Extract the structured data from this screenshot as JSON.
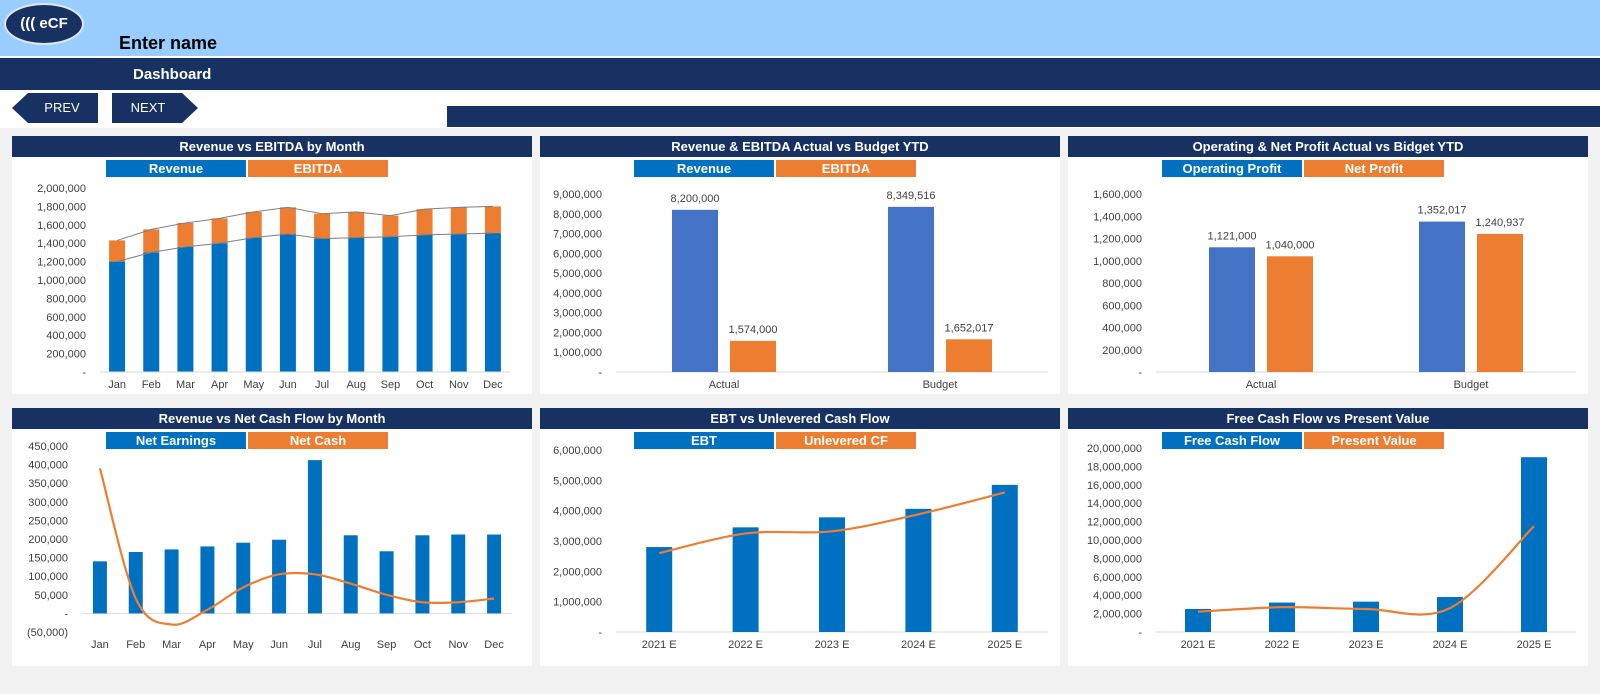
{
  "header": {
    "logo_text": "((( eCF",
    "company_name": "Enter name",
    "page_title": "Dashboard",
    "prev_label": "PREV",
    "next_label": "NEXT"
  },
  "colors": {
    "navy": "#173262",
    "blue": "#0070c0",
    "orange": "#ed7d31",
    "budget_blue": "#4472c4",
    "sky": "#99ccff"
  },
  "panels": [
    {
      "title": "Revenue vs EBITDA by Month",
      "legend": [
        "Revenue",
        "EBITDA"
      ]
    },
    {
      "title": "Revenue & EBITDA Actual vs Budget YTD",
      "legend": [
        "Revenue",
        "EBITDA"
      ]
    },
    {
      "title": "Operating & Net Profit Actual vs Bidget YTD",
      "legend": [
        "Operating Profit",
        "Net Profit"
      ]
    },
    {
      "title": "Revenue vs Net Cash Flow by Month",
      "legend": [
        "Net Earnings",
        "Net Cash"
      ]
    },
    {
      "title": "EBT vs Unlevered Cash Flow",
      "legend": [
        "EBT",
        "Unlevered CF"
      ]
    },
    {
      "title": "Free Cash Flow vs Present Value",
      "legend": [
        "Free Cash Flow",
        "Present Value"
      ]
    }
  ],
  "chart_data": [
    {
      "type": "bar",
      "stacked": true,
      "title": "Revenue vs EBITDA by Month",
      "categories": [
        "Jan",
        "Feb",
        "Mar",
        "Apr",
        "May",
        "Jun",
        "Jul",
        "Aug",
        "Sep",
        "Oct",
        "Nov",
        "Dec"
      ],
      "series": [
        {
          "name": "Revenue",
          "values": [
            1200000,
            1300000,
            1360000,
            1400000,
            1460000,
            1500000,
            1450000,
            1460000,
            1470000,
            1490000,
            1500000,
            1510000
          ]
        },
        {
          "name": "EBITDA",
          "values": [
            230000,
            250000,
            260000,
            270000,
            280000,
            290000,
            270000,
            280000,
            230000,
            280000,
            290000,
            290000
          ]
        }
      ],
      "ylim": [
        0,
        2000000
      ],
      "yticks": [
        "-",
        "200,000",
        "400,000",
        "600,000",
        "800,000",
        "1,000,000",
        "1,200,000",
        "1,400,000",
        "1,600,000",
        "1,800,000",
        "2,000,000"
      ]
    },
    {
      "type": "bar",
      "title": "Revenue & EBITDA Actual vs Budget YTD",
      "categories": [
        "Actual",
        "Budget"
      ],
      "series": [
        {
          "name": "Revenue",
          "values": [
            8200000,
            8349516
          ],
          "labels": [
            "8,200,000",
            "8,349,516"
          ]
        },
        {
          "name": "EBITDA",
          "values": [
            1574000,
            1652017
          ],
          "labels": [
            "1,574,000",
            "1,652,017"
          ]
        }
      ],
      "ylim": [
        0,
        9000000
      ],
      "yticks": [
        "-",
        "1,000,000",
        "2,000,000",
        "3,000,000",
        "4,000,000",
        "5,000,000",
        "6,000,000",
        "7,000,000",
        "8,000,000",
        "9,000,000"
      ]
    },
    {
      "type": "bar",
      "title": "Operating & Net Profit Actual vs Bidget YTD",
      "categories": [
        "Actual",
        "Budget"
      ],
      "series": [
        {
          "name": "Operating Profit",
          "values": [
            1121000,
            1352017
          ],
          "labels": [
            "1,121,000",
            "1,352,017"
          ]
        },
        {
          "name": "Net Profit",
          "values": [
            1040000,
            1240937
          ],
          "labels": [
            "1,040,000",
            "1,240,937"
          ]
        }
      ],
      "ylim": [
        0,
        1600000
      ],
      "yticks": [
        "-",
        "200,000",
        "400,000",
        "600,000",
        "800,000",
        "1,000,000",
        "1,200,000",
        "1,400,000",
        "1,600,000"
      ]
    },
    {
      "type": "bar+line",
      "title": "Revenue vs Net Cash Flow by Month",
      "categories": [
        "Jan",
        "Feb",
        "Mar",
        "Apr",
        "May",
        "Jun",
        "Jul",
        "Aug",
        "Sep",
        "Oct",
        "Nov",
        "Dec"
      ],
      "series": [
        {
          "name": "Net Earnings",
          "type": "bar",
          "values": [
            140000,
            165000,
            172000,
            180000,
            190000,
            198000,
            412000,
            210000,
            167000,
            210000,
            212000,
            212000
          ]
        },
        {
          "name": "Net Cash",
          "type": "line",
          "values": [
            390000,
            40000,
            -30000,
            10000,
            70000,
            105000,
            105000,
            80000,
            50000,
            30000,
            30000,
            40000
          ]
        }
      ],
      "ylim": [
        -50000,
        450000
      ],
      "yticks": [
        "(50,000)",
        "-",
        "50,000",
        "100,000",
        "150,000",
        "200,000",
        "250,000",
        "300,000",
        "350,000",
        "400,000",
        "450,000"
      ]
    },
    {
      "type": "bar+line",
      "title": "EBT vs Unlevered Cash Flow",
      "categories": [
        "2021 E",
        "2022 E",
        "2023 E",
        "2024 E",
        "2025 E"
      ],
      "series": [
        {
          "name": "EBT",
          "type": "bar",
          "values": [
            2800000,
            3450000,
            3780000,
            4060000,
            4850000
          ]
        },
        {
          "name": "Unlevered CF",
          "type": "line",
          "values": [
            2600000,
            3250000,
            3320000,
            3880000,
            4600000
          ]
        }
      ],
      "ylim": [
        0,
        6000000
      ],
      "yticks": [
        "-",
        "1,000,000",
        "2,000,000",
        "3,000,000",
        "4,000,000",
        "5,000,000",
        "6,000,000"
      ]
    },
    {
      "type": "bar+line",
      "title": "Free Cash Flow vs Present Value",
      "categories": [
        "2021 E",
        "2022 E",
        "2023 E",
        "2024 E",
        "2025 E"
      ],
      "series": [
        {
          "name": "Free Cash Flow",
          "type": "bar",
          "values": [
            2500000,
            3200000,
            3300000,
            3800000,
            19000000
          ]
        },
        {
          "name": "Present Value",
          "type": "line",
          "values": [
            2200000,
            2700000,
            2500000,
            2600000,
            11500000
          ]
        }
      ],
      "ylim": [
        0,
        20000000
      ],
      "yticks": [
        "-",
        "2,000,000",
        "4,000,000",
        "6,000,000",
        "8,000,000",
        "10,000,000",
        "12,000,000",
        "14,000,000",
        "16,000,000",
        "18,000,000",
        "20,000,000"
      ]
    }
  ]
}
